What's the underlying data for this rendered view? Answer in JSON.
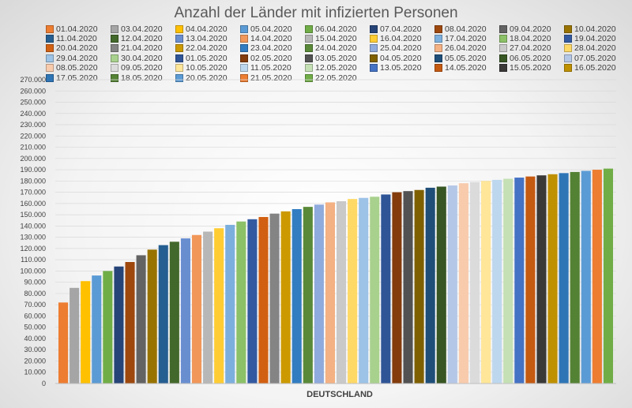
{
  "chart_data": {
    "type": "bar",
    "title": "Anzahl der Länder mit infizierten Personen",
    "categories": [
      "DEUTSCHLAND"
    ],
    "xlabel": "DEUTSCHLAND",
    "ylabel": "",
    "ylim": [
      0,
      270000
    ],
    "yticks": [
      0,
      10000,
      20000,
      30000,
      40000,
      50000,
      60000,
      70000,
      80000,
      90000,
      100000,
      110000,
      120000,
      130000,
      140000,
      150000,
      160000,
      170000,
      180000,
      190000,
      200000,
      210000,
      220000,
      230000,
      240000,
      250000,
      260000,
      270000
    ],
    "ytick_labels": [
      "0",
      "10.000",
      "20.000",
      "30.000",
      "40.000",
      "50.000",
      "60.000",
      "70.000",
      "80.000",
      "90.000",
      "100.000",
      "110.000",
      "120.000",
      "130.000",
      "140.000",
      "150.000",
      "160.000",
      "170.000",
      "180.000",
      "190.000",
      "200.000",
      "210.000",
      "220.000",
      "230.000",
      "240.000",
      "250.000",
      "260.000",
      "270.000"
    ],
    "grid": true,
    "legend_position": "top",
    "series": [
      {
        "name": "01.04.2020",
        "values": [
          72000
        ]
      },
      {
        "name": "03.04.2020",
        "values": [
          85000
        ]
      },
      {
        "name": "04.04.2020",
        "values": [
          91000
        ]
      },
      {
        "name": "05.04.2020",
        "values": [
          96000
        ]
      },
      {
        "name": "06.04.2020",
        "values": [
          100000
        ]
      },
      {
        "name": "07.04.2020",
        "values": [
          104000
        ]
      },
      {
        "name": "08.04.2020",
        "values": [
          108000
        ]
      },
      {
        "name": "09.04.2020",
        "values": [
          114000
        ]
      },
      {
        "name": "10.04.2020",
        "values": [
          119000
        ]
      },
      {
        "name": "11.04.2020",
        "values": [
          123000
        ]
      },
      {
        "name": "12.04.2020",
        "values": [
          126000
        ]
      },
      {
        "name": "13.04.2020",
        "values": [
          129000
        ]
      },
      {
        "name": "14.04.2020",
        "values": [
          132000
        ]
      },
      {
        "name": "15.04.2020",
        "values": [
          135000
        ]
      },
      {
        "name": "16.04.2020",
        "values": [
          138000
        ]
      },
      {
        "name": "17.04.2020",
        "values": [
          141000
        ]
      },
      {
        "name": "18.04.2020",
        "values": [
          144000
        ]
      },
      {
        "name": "19.04.2020",
        "values": [
          146000
        ]
      },
      {
        "name": "20.04.2020",
        "values": [
          148000
        ]
      },
      {
        "name": "21.04.2020",
        "values": [
          151000
        ]
      },
      {
        "name": "22.04.2020",
        "values": [
          153000
        ]
      },
      {
        "name": "23.04.2020",
        "values": [
          155000
        ]
      },
      {
        "name": "24.04.2020",
        "values": [
          157000
        ]
      },
      {
        "name": "25.04.2020",
        "values": [
          159000
        ]
      },
      {
        "name": "26.04.2020",
        "values": [
          161000
        ]
      },
      {
        "name": "27.04.2020",
        "values": [
          162000
        ]
      },
      {
        "name": "28.04.2020",
        "values": [
          164000
        ]
      },
      {
        "name": "29.04.2020",
        "values": [
          165000
        ]
      },
      {
        "name": "30.04.2020",
        "values": [
          166000
        ]
      },
      {
        "name": "01.05.2020",
        "values": [
          168000
        ]
      },
      {
        "name": "02.05.2020",
        "values": [
          170000
        ]
      },
      {
        "name": "03.05.2020",
        "values": [
          171000
        ]
      },
      {
        "name": "04.05.2020",
        "values": [
          172000
        ]
      },
      {
        "name": "05.05.2020",
        "values": [
          174000
        ]
      },
      {
        "name": "06.05.2020",
        "values": [
          175000
        ]
      },
      {
        "name": "07.05.2020",
        "values": [
          176000
        ]
      },
      {
        "name": "08.05.2020",
        "values": [
          178000
        ]
      },
      {
        "name": "09.05.2020",
        "values": [
          179000
        ]
      },
      {
        "name": "10.05.2020",
        "values": [
          180000
        ]
      },
      {
        "name": "11.05.2020",
        "values": [
          181000
        ]
      },
      {
        "name": "12.05.2020",
        "values": [
          182000
        ]
      },
      {
        "name": "13.05.2020",
        "values": [
          183000
        ]
      },
      {
        "name": "14.05.2020",
        "values": [
          184000
        ]
      },
      {
        "name": "15.05.2020",
        "values": [
          185000
        ]
      },
      {
        "name": "16.05.2020",
        "values": [
          186000
        ]
      },
      {
        "name": "17.05.2020",
        "values": [
          187000
        ]
      },
      {
        "name": "18.05.2020",
        "values": [
          188000
        ]
      },
      {
        "name": "20.05.2020",
        "values": [
          189000
        ]
      },
      {
        "name": "21.05.2020",
        "values": [
          190000
        ]
      },
      {
        "name": "22.05.2020",
        "values": [
          191000
        ]
      }
    ],
    "colors": [
      "#ed7d31",
      "#a5a5a5",
      "#ffc000",
      "#5b9bd5",
      "#70ad47",
      "#264478",
      "#9e480e",
      "#636363",
      "#997300",
      "#255e91",
      "#43682b",
      "#698ed0",
      "#f1975a",
      "#b7b7b7",
      "#ffcd33",
      "#7cafdd",
      "#8cc168",
      "#335aa1",
      "#d26012",
      "#848484",
      "#cc9a00",
      "#327dc2",
      "#5a8a39",
      "#8faadc",
      "#f4b183",
      "#c9c9c9",
      "#ffd966",
      "#9dc3e6",
      "#a9d18e",
      "#2f5597",
      "#843c0c",
      "#525252",
      "#7f6000",
      "#1f4e79",
      "#375623",
      "#b4c7e7",
      "#f8cbad",
      "#dbdbdb",
      "#ffe699",
      "#bdd7ee",
      "#c5e0b4",
      "#4472c4",
      "#c55a11",
      "#3b3838",
      "#bf9000",
      "#2e75b6",
      "#548235",
      "#5b9bd5",
      "#ed7d31",
      "#70ad47"
    ]
  }
}
